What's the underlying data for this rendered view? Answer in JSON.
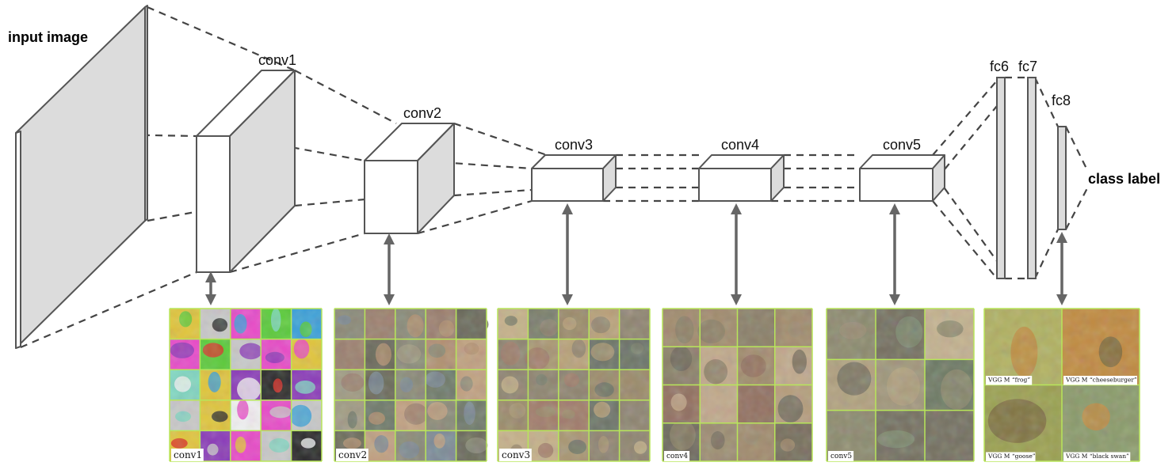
{
  "diagram": {
    "input_label": "input image",
    "output_label": "class label",
    "layers": [
      {
        "id": "conv1",
        "label": "conv1"
      },
      {
        "id": "conv2",
        "label": "conv2"
      },
      {
        "id": "conv3",
        "label": "conv3"
      },
      {
        "id": "conv4",
        "label": "conv4"
      },
      {
        "id": "conv5",
        "label": "conv5"
      },
      {
        "id": "fc6",
        "label": "fc6"
      },
      {
        "id": "fc7",
        "label": "fc7"
      },
      {
        "id": "fc8",
        "label": "fc8"
      }
    ],
    "panels": [
      {
        "id": "conv1",
        "caption": "conv1",
        "grid": 5
      },
      {
        "id": "conv2",
        "caption": "conv2",
        "grid": 5
      },
      {
        "id": "conv3",
        "caption": "conv3",
        "grid": 5
      },
      {
        "id": "conv4",
        "caption": "conv4",
        "grid": 4
      },
      {
        "id": "conv5",
        "caption": "conv5",
        "grid": 3
      },
      {
        "id": "fc8",
        "grid": 2,
        "captions": [
          "VGG M “frog”",
          "VGG M “cheeseburger”",
          "VGG M “goose”",
          "VGG M “black swan”"
        ]
      }
    ]
  },
  "colors": {
    "outline": "#555555",
    "face_shade": "#dcdcdc",
    "dash": "#444444",
    "arrow": "#666666",
    "grid_line": "#b8e65a"
  }
}
